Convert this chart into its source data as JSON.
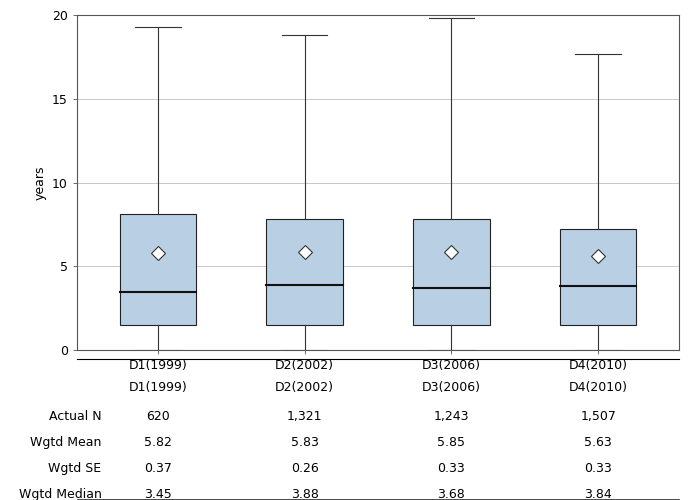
{
  "categories": [
    "D1(1999)",
    "D2(2002)",
    "D3(2006)",
    "D4(2010)"
  ],
  "box_data": [
    {
      "whislo": 0.0,
      "q1": 1.5,
      "med": 3.45,
      "q3": 8.1,
      "whishi": 19.3,
      "mean": 5.82
    },
    {
      "whislo": 0.0,
      "q1": 1.5,
      "med": 3.88,
      "q3": 7.8,
      "whishi": 18.8,
      "mean": 5.83
    },
    {
      "whislo": 0.0,
      "q1": 1.5,
      "med": 3.68,
      "q3": 7.8,
      "whishi": 19.8,
      "mean": 5.85
    },
    {
      "whislo": 0.0,
      "q1": 1.5,
      "med": 3.84,
      "q3": 7.2,
      "whishi": 17.7,
      "mean": 5.63
    }
  ],
  "table_rows": [
    {
      "label": "Actual N",
      "values": [
        "620",
        "1,321",
        "1,243",
        "1,507"
      ]
    },
    {
      "label": "Wgtd Mean",
      "values": [
        "5.82",
        "5.83",
        "5.85",
        "5.63"
      ]
    },
    {
      "label": "Wgtd SE",
      "values": [
        "0.37",
        "0.26",
        "0.33",
        "0.33"
      ]
    },
    {
      "label": "Wgtd Median",
      "values": [
        "3.45",
        "3.88",
        "3.68",
        "3.84"
      ]
    }
  ],
  "ylabel": "years",
  "ylim": [
    0,
    20
  ],
  "yticks": [
    0,
    5,
    10,
    15,
    20
  ],
  "box_color": "#b8cfe4",
  "box_edge_color": "#222222",
  "median_color": "#111111",
  "whisker_color": "#333333",
  "mean_marker": "D",
  "mean_marker_color": "white",
  "mean_marker_edge": "#333333",
  "grid_color": "#c8c8c8",
  "bg_color": "#ffffff",
  "table_header_fontsize": 9,
  "table_cell_fontsize": 9,
  "ylabel_fontsize": 9,
  "tick_fontsize": 9,
  "box_width": 0.52,
  "cap_ratio": 0.3
}
